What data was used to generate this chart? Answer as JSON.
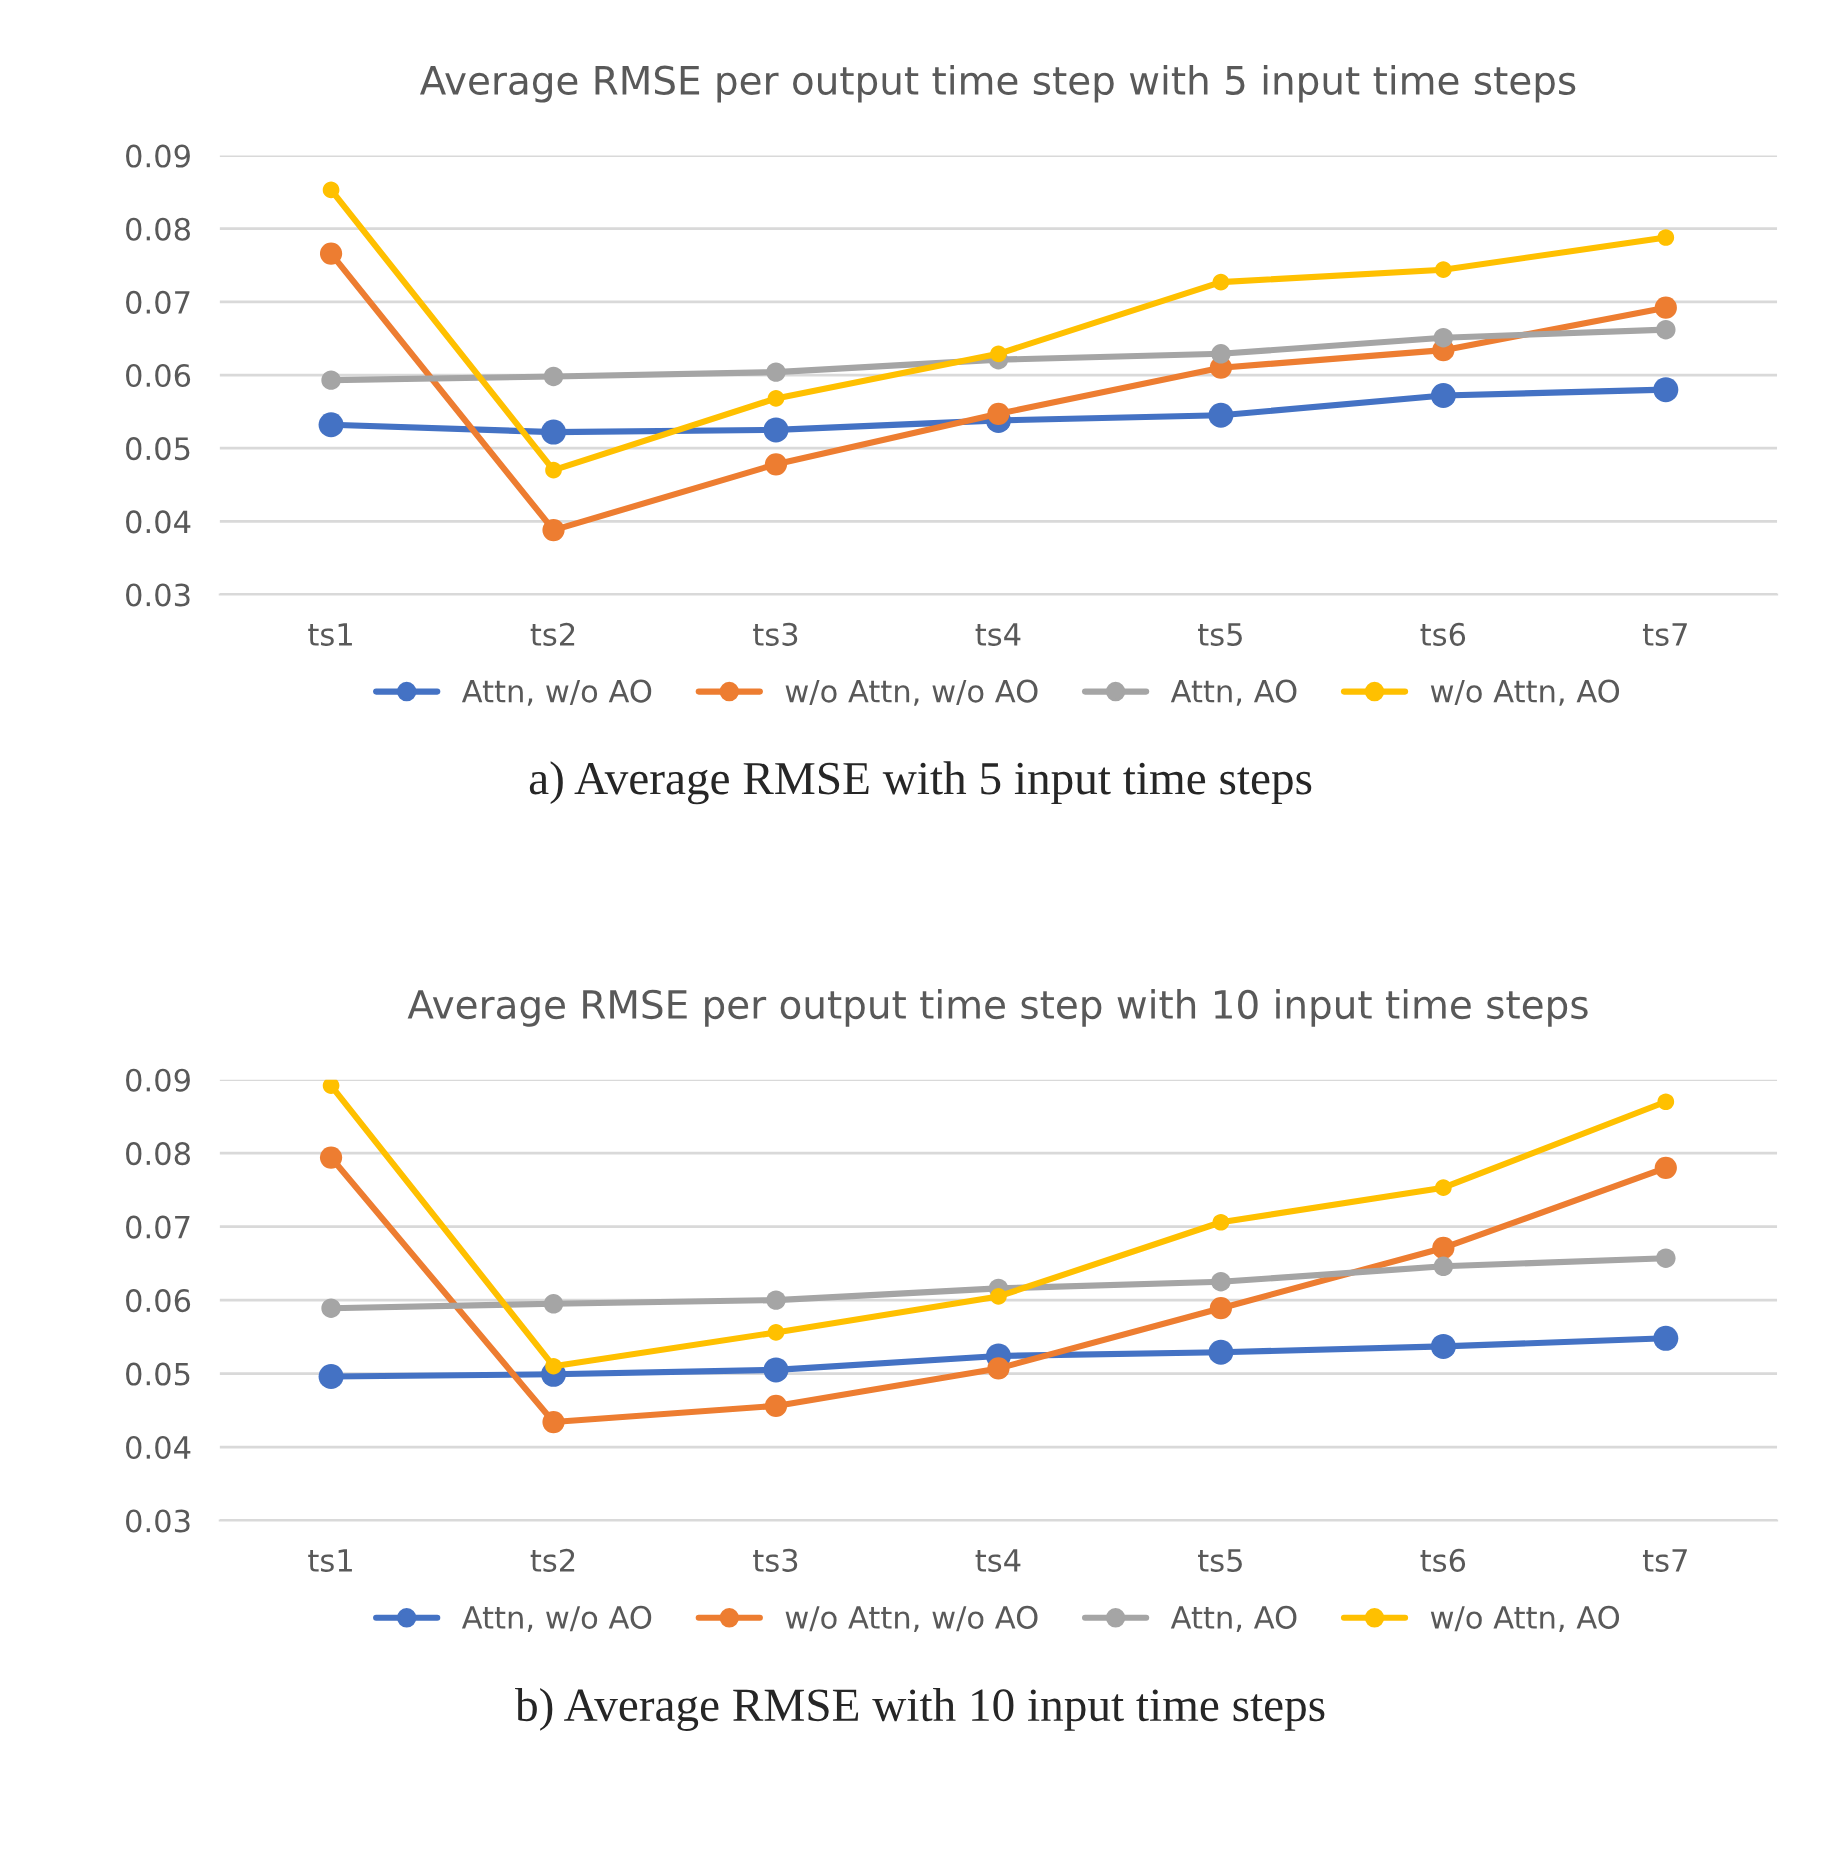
{
  "chart_data": [
    {
      "type": "line",
      "title": "Average RMSE per output time step with 5 input time steps",
      "categories": [
        "ts1",
        "ts2",
        "ts3",
        "ts4",
        "ts5",
        "ts6",
        "ts7"
      ],
      "ylim": [
        0.03,
        0.09
      ],
      "yticks": [
        0.03,
        0.04,
        0.05,
        0.06,
        0.07,
        0.08,
        0.09
      ],
      "grid": "y",
      "legend": "bottom",
      "marker": "circle",
      "line_style": "solid",
      "annotations": [
        "a) Average RMSE with 5 input time steps"
      ],
      "series": [
        {
          "name": "Attn, w/o AO",
          "color": "#4472c4",
          "values": [
            0.0532,
            0.0522,
            0.0525,
            0.0538,
            0.0545,
            0.0572,
            0.058
          ]
        },
        {
          "name": "w/o Attn, w/o AO",
          "color": "#ed7d31",
          "values": [
            0.0766,
            0.0388,
            0.0478,
            0.0547,
            0.061,
            0.0634,
            0.0692
          ]
        },
        {
          "name": "Attn, AO",
          "color": "#a5a5a5",
          "values": [
            0.0593,
            0.0598,
            0.0604,
            0.0621,
            0.0629,
            0.0651,
            0.0662
          ]
        },
        {
          "name": "w/o Attn, AO",
          "color": "#ffc000",
          "values": [
            0.0853,
            0.047,
            0.0568,
            0.0629,
            0.0727,
            0.0744,
            0.0788
          ]
        }
      ]
    },
    {
      "type": "line",
      "title": "Average RMSE per output time step with 10 input time steps",
      "categories": [
        "ts1",
        "ts2",
        "ts3",
        "ts4",
        "ts5",
        "ts6",
        "ts7"
      ],
      "ylim": [
        0.03,
        0.09
      ],
      "yticks": [
        0.03,
        0.04,
        0.05,
        0.06,
        0.07,
        0.08,
        0.09
      ],
      "grid": "y",
      "legend": "bottom",
      "marker": "circle",
      "line_style": "solid",
      "annotations": [
        "b) Average RMSE with 10 input time steps"
      ],
      "series": [
        {
          "name": "Attn, w/o AO",
          "color": "#4472c4",
          "values": [
            0.0496,
            0.0499,
            0.0505,
            0.0524,
            0.0529,
            0.0537,
            0.0548
          ]
        },
        {
          "name": "w/o Attn, w/o AO",
          "color": "#ed7d31",
          "values": [
            0.0794,
            0.0434,
            0.0456,
            0.0507,
            0.0589,
            0.0671,
            0.078
          ]
        },
        {
          "name": "Attn, AO",
          "color": "#a5a5a5",
          "values": [
            0.0589,
            0.0595,
            0.06,
            0.0616,
            0.0625,
            0.0646,
            0.0657
          ]
        },
        {
          "name": "w/o Attn, AO",
          "color": "#ffc000",
          "values": [
            0.0892,
            0.051,
            0.0556,
            0.0605,
            0.0706,
            0.0753,
            0.087
          ]
        }
      ]
    }
  ]
}
